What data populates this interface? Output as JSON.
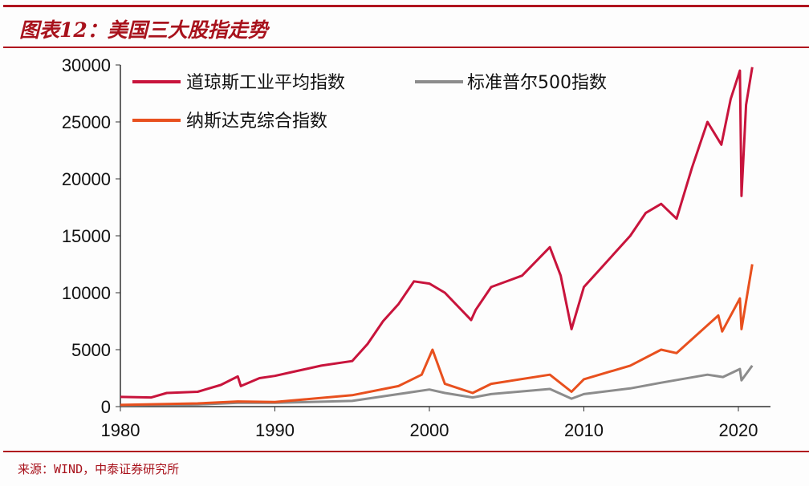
{
  "title": "图表12：美国三大股指走势",
  "source": "来源：WIND，中泰证券研究所",
  "colors": {
    "dow": "#c8143c",
    "sp500": "#8c8c8c",
    "nasdaq": "#e8501e",
    "accent": "#b0141e"
  },
  "chart_data": {
    "type": "line",
    "title": "图表12：美国三大股指走势",
    "xlabel": "",
    "ylabel": "",
    "xlim": [
      1980,
      2020.9
    ],
    "ylim": [
      0,
      30000
    ],
    "xticks": [
      "1980",
      "1990",
      "2000",
      "2010",
      "2020"
    ],
    "yticks": [
      "0",
      "5000",
      "10000",
      "15000",
      "20000",
      "25000",
      "30000"
    ],
    "grid": false,
    "legend": "top-left",
    "series": [
      {
        "name": "道琼斯工业平均指数",
        "color": "#c8143c",
        "x": [
          1980,
          1982,
          1983,
          1985,
          1986.5,
          1987.6,
          1987.8,
          1989,
          1990,
          1991,
          1993,
          1995,
          1996,
          1997,
          1998,
          1999,
          2000,
          2001,
          2002.7,
          2003,
          2004,
          2006,
          2007.8,
          2008.5,
          2009.2,
          2010,
          2011,
          2013,
          2014,
          2015,
          2016,
          2017,
          2018,
          2018.9,
          2019.5,
          2020.1,
          2020.2,
          2020.5,
          2020.9
        ],
        "y": [
          850,
          800,
          1200,
          1300,
          1900,
          2650,
          1800,
          2500,
          2700,
          3000,
          3600,
          4000,
          5500,
          7500,
          9000,
          11000,
          10800,
          10000,
          7600,
          8500,
          10500,
          11500,
          14000,
          11500,
          6800,
          10500,
          12000,
          15000,
          17000,
          17800,
          16500,
          21000,
          25000,
          23000,
          27000,
          29500,
          18500,
          26500,
          29800
        ]
      },
      {
        "name": "标准普尔500指数",
        "color": "#8c8c8c",
        "x": [
          1980,
          1985,
          1987.6,
          1990,
          1995,
          1998,
          2000,
          2001,
          2002.8,
          2004,
          2007.8,
          2009.2,
          2010,
          2013,
          2015,
          2018,
          2019,
          2020.1,
          2020.2,
          2020.9
        ],
        "y": [
          110,
          180,
          330,
          330,
          500,
          1100,
          1500,
          1200,
          800,
          1100,
          1550,
          700,
          1100,
          1600,
          2100,
          2800,
          2600,
          3300,
          2300,
          3600
        ]
      },
      {
        "name": "纳斯达克综合指数",
        "color": "#e8501e",
        "x": [
          1980,
          1985,
          1987.6,
          1990,
          1995,
          1998,
          1999.5,
          2000.2,
          2001,
          2002.8,
          2004,
          2007.8,
          2009.2,
          2010,
          2013,
          2015,
          2016,
          2018.7,
          2018.95,
          2020.1,
          2020.2,
          2020.9
        ],
        "y": [
          150,
          280,
          450,
          400,
          1000,
          1800,
          2800,
          5000,
          2000,
          1200,
          2000,
          2800,
          1300,
          2400,
          3600,
          5000,
          4700,
          8000,
          6600,
          9500,
          6800,
          12500
        ]
      }
    ]
  }
}
